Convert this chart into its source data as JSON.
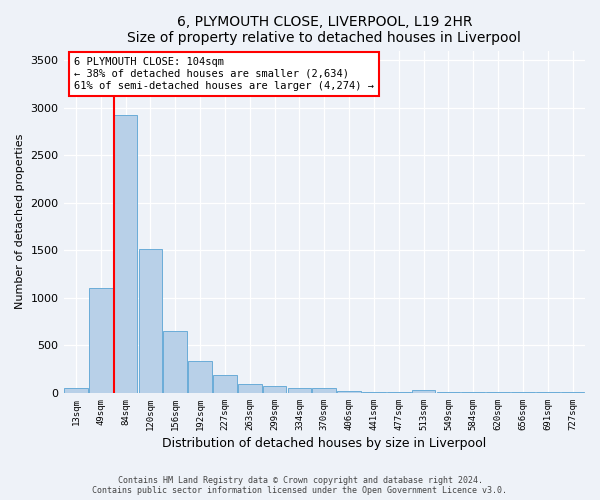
{
  "title": "6, PLYMOUTH CLOSE, LIVERPOOL, L19 2HR",
  "subtitle": "Size of property relative to detached houses in Liverpool",
  "xlabel": "Distribution of detached houses by size in Liverpool",
  "ylabel": "Number of detached properties",
  "footer_line1": "Contains HM Land Registry data © Crown copyright and database right 2024.",
  "footer_line2": "Contains public sector information licensed under the Open Government Licence v3.0.",
  "categories": [
    "13sqm",
    "49sqm",
    "84sqm",
    "120sqm",
    "156sqm",
    "192sqm",
    "227sqm",
    "263sqm",
    "299sqm",
    "334sqm",
    "370sqm",
    "406sqm",
    "441sqm",
    "477sqm",
    "513sqm",
    "549sqm",
    "584sqm",
    "620sqm",
    "656sqm",
    "691sqm",
    "727sqm"
  ],
  "bar_values": [
    50,
    1100,
    2920,
    1510,
    650,
    340,
    185,
    90,
    70,
    55,
    50,
    20,
    15,
    10,
    30,
    5,
    5,
    5,
    5,
    5,
    5
  ],
  "bar_color": "#b8d0e8",
  "bar_edge_color": "#6aacd8",
  "ylim": [
    0,
    3600
  ],
  "yticks": [
    0,
    500,
    1000,
    1500,
    2000,
    2500,
    3000,
    3500
  ],
  "property_line_bar_index": 2,
  "property_sqm": 104,
  "annotation_text_line1": "6 PLYMOUTH CLOSE: 104sqm",
  "annotation_text_line2": "← 38% of detached houses are smaller (2,634)",
  "annotation_text_line3": "61% of semi-detached houses are larger (4,274) →",
  "annotation_box_color": "red",
  "bg_color": "#eef2f8"
}
